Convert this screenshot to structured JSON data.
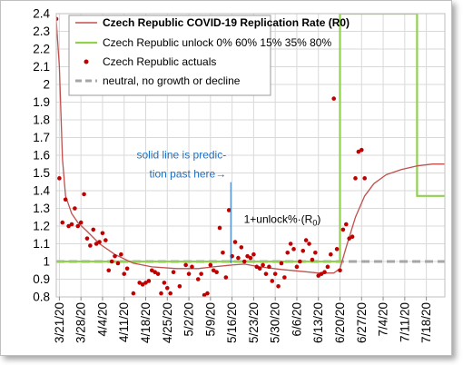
{
  "chart_data": {
    "type": "line",
    "title": "",
    "xlabel": "",
    "ylabel": "",
    "ylim": [
      0.8,
      2.4
    ],
    "yticks": [
      0.8,
      0.9,
      1,
      1.1,
      1.2,
      1.3,
      1.4,
      1.5,
      1.6,
      1.7,
      1.8,
      1.9,
      2,
      2.1,
      2.2,
      2.3,
      2.4
    ],
    "ytick_labels": [
      "0.8",
      "0.9",
      "1",
      "1.1",
      "1.2",
      "1.3",
      "1.4",
      "1.5",
      "1.6",
      "1.7",
      "1.8",
      "1.9",
      "2",
      "2.1",
      "2.2",
      "2.3",
      "2.4"
    ],
    "xlim": [
      "2020-03-20",
      "2020-07-24"
    ],
    "xticks": [
      "2020-03-21",
      "2020-03-28",
      "2020-04-04",
      "2020-04-11",
      "2020-04-18",
      "2020-04-25",
      "2020-05-02",
      "2020-05-09",
      "2020-05-16",
      "2020-05-23",
      "2020-05-30",
      "2020-06-06",
      "2020-06-13",
      "2020-06-20",
      "2020-06-27",
      "2020-07-04",
      "2020-07-11",
      "2020-07-18"
    ],
    "xtick_labels": [
      "3/21/20",
      "3/28/20",
      "4/4/20",
      "4/11/20",
      "4/18/20",
      "4/25/20",
      "5/2/20",
      "5/9/20",
      "5/16/20",
      "5/23/20",
      "5/30/20",
      "6/6/20",
      "6/13/20",
      "6/20/20",
      "6/27/20",
      "7/4/20",
      "7/11/20",
      "7/18/20"
    ],
    "grid": true,
    "legend_position": "top",
    "colors": {
      "rate": "#c0504d",
      "unlock": "#92d050",
      "actuals": "#c00000",
      "neutral": "#a6a6a6",
      "annotation": "#1f6fbf",
      "grid": "#d9d9d9"
    },
    "series": [
      {
        "name": "Czech Republic COVID-19 Replication Rate (R0)",
        "style": "line",
        "x": [
          "2020-03-20",
          "2020-03-21",
          "2020-03-22",
          "2020-03-23",
          "2020-03-25",
          "2020-03-27",
          "2020-03-30",
          "2020-04-03",
          "2020-04-08",
          "2020-04-14",
          "2020-04-20",
          "2020-04-28",
          "2020-05-05",
          "2020-05-10",
          "2020-05-16",
          "2020-05-20",
          "2020-05-25",
          "2020-06-01",
          "2020-06-07",
          "2020-06-13",
          "2020-06-18",
          "2020-06-20",
          "2020-06-22",
          "2020-06-25",
          "2020-06-28",
          "2020-07-01",
          "2020-07-05",
          "2020-07-10",
          "2020-07-15",
          "2020-07-20",
          "2020-07-24"
        ],
        "values": [
          2.36,
          2.1,
          1.58,
          1.37,
          1.27,
          1.22,
          1.17,
          1.1,
          1.04,
          0.99,
          0.97,
          0.96,
          0.96,
          0.97,
          0.98,
          0.985,
          0.97,
          0.955,
          0.945,
          0.935,
          0.935,
          0.96,
          1.08,
          1.25,
          1.37,
          1.44,
          1.49,
          1.52,
          1.54,
          1.55,
          1.55
        ]
      },
      {
        "name": "Czech Republic unlock 0% 60% 15% 35% 80%",
        "style": "line",
        "x": [
          "2020-03-20",
          "2020-06-19",
          "2020-06-20",
          "2020-06-20",
          "2020-07-14",
          "2020-07-15",
          "2020-07-15",
          "2020-07-24"
        ],
        "values": [
          1.0,
          1.0,
          1.0,
          2.4,
          2.4,
          2.4,
          1.37,
          1.37
        ]
      },
      {
        "name": "Czech Republic actuals",
        "style": "markers",
        "x": [
          "2020-03-20",
          "2020-03-21",
          "2020-03-22",
          "2020-03-23",
          "2020-03-24",
          "2020-03-25",
          "2020-03-26",
          "2020-03-27",
          "2020-03-28",
          "2020-03-29",
          "2020-03-30",
          "2020-03-31",
          "2020-04-01",
          "2020-04-02",
          "2020-04-03",
          "2020-04-04",
          "2020-04-05",
          "2020-04-06",
          "2020-04-07",
          "2020-04-08",
          "2020-04-09",
          "2020-04-10",
          "2020-04-11",
          "2020-04-12",
          "2020-04-14",
          "2020-04-16",
          "2020-04-17",
          "2020-04-18",
          "2020-04-19",
          "2020-04-20",
          "2020-04-21",
          "2020-04-22",
          "2020-04-23",
          "2020-04-24",
          "2020-04-25",
          "2020-04-26",
          "2020-04-27",
          "2020-04-29",
          "2020-05-01",
          "2020-05-02",
          "2020-05-03",
          "2020-05-05",
          "2020-05-06",
          "2020-05-07",
          "2020-05-08",
          "2020-05-09",
          "2020-05-10",
          "2020-05-11",
          "2020-05-12",
          "2020-05-13",
          "2020-05-14",
          "2020-05-15",
          "2020-05-16",
          "2020-05-17",
          "2020-05-18",
          "2020-05-19",
          "2020-05-20",
          "2020-05-21",
          "2020-05-22",
          "2020-05-23",
          "2020-05-24",
          "2020-05-25",
          "2020-05-26",
          "2020-05-27",
          "2020-05-28",
          "2020-05-29",
          "2020-05-30",
          "2020-05-31",
          "2020-06-01",
          "2020-06-02",
          "2020-06-03",
          "2020-06-04",
          "2020-06-05",
          "2020-06-06",
          "2020-06-07",
          "2020-06-08",
          "2020-06-09",
          "2020-06-10",
          "2020-06-11",
          "2020-06-12",
          "2020-06-13",
          "2020-06-14",
          "2020-06-15",
          "2020-06-16",
          "2020-06-17",
          "2020-06-18",
          "2020-06-19",
          "2020-06-20",
          "2020-06-21",
          "2020-06-22",
          "2020-06-23",
          "2020-06-24",
          "2020-06-25",
          "2020-06-26",
          "2020-06-27",
          "2020-06-28"
        ],
        "values": [
          2.37,
          1.47,
          1.22,
          1.35,
          1.2,
          1.21,
          1.3,
          1.2,
          1.22,
          1.38,
          1.13,
          1.09,
          1.18,
          1.1,
          1.11,
          1.16,
          1.12,
          0.95,
          1.0,
          1.03,
          0.99,
          1.04,
          0.93,
          0.96,
          0.82,
          0.88,
          0.87,
          0.88,
          0.89,
          0.95,
          0.94,
          0.93,
          0.82,
          0.88,
          0.85,
          0.82,
          0.94,
          0.86,
          0.98,
          0.93,
          0.97,
          0.9,
          0.93,
          0.81,
          0.82,
          0.98,
          0.95,
          0.94,
          1.19,
          1.05,
          0.91,
          1.29,
          1.03,
          1.11,
          1.02,
          1.08,
          1.0,
          1.03,
          1.02,
          1.04,
          0.97,
          0.96,
          0.98,
          0.93,
          0.97,
          0.89,
          0.93,
          0.86,
          0.99,
          0.91,
          1.05,
          1.1,
          1.07,
          0.97,
          1.0,
          1.06,
          1.12,
          1.1,
          1.01,
          1.05,
          0.92,
          0.93,
          0.94,
          0.97,
          1.04,
          1.92,
          1.07,
          0.95,
          1.18,
          1.21,
          1.13,
          1.14,
          1.47,
          1.62,
          1.63,
          1.47
        ]
      },
      {
        "name": "neutral, no growth or decline",
        "style": "dashed",
        "x": [
          "2020-03-20",
          "2020-07-24"
        ],
        "values": [
          1.0,
          1.0
        ]
      }
    ],
    "annotations": [
      {
        "text_lines": [
          "solid line is predic-",
          "tion past here→"
        ],
        "x": "2020-05-15",
        "y": 1.52
      },
      {
        "text_main": "1+unlock%·(R",
        "text_sub": "0",
        "text_close": ")",
        "x": "2020-05-16",
        "y": 1.26
      }
    ]
  }
}
